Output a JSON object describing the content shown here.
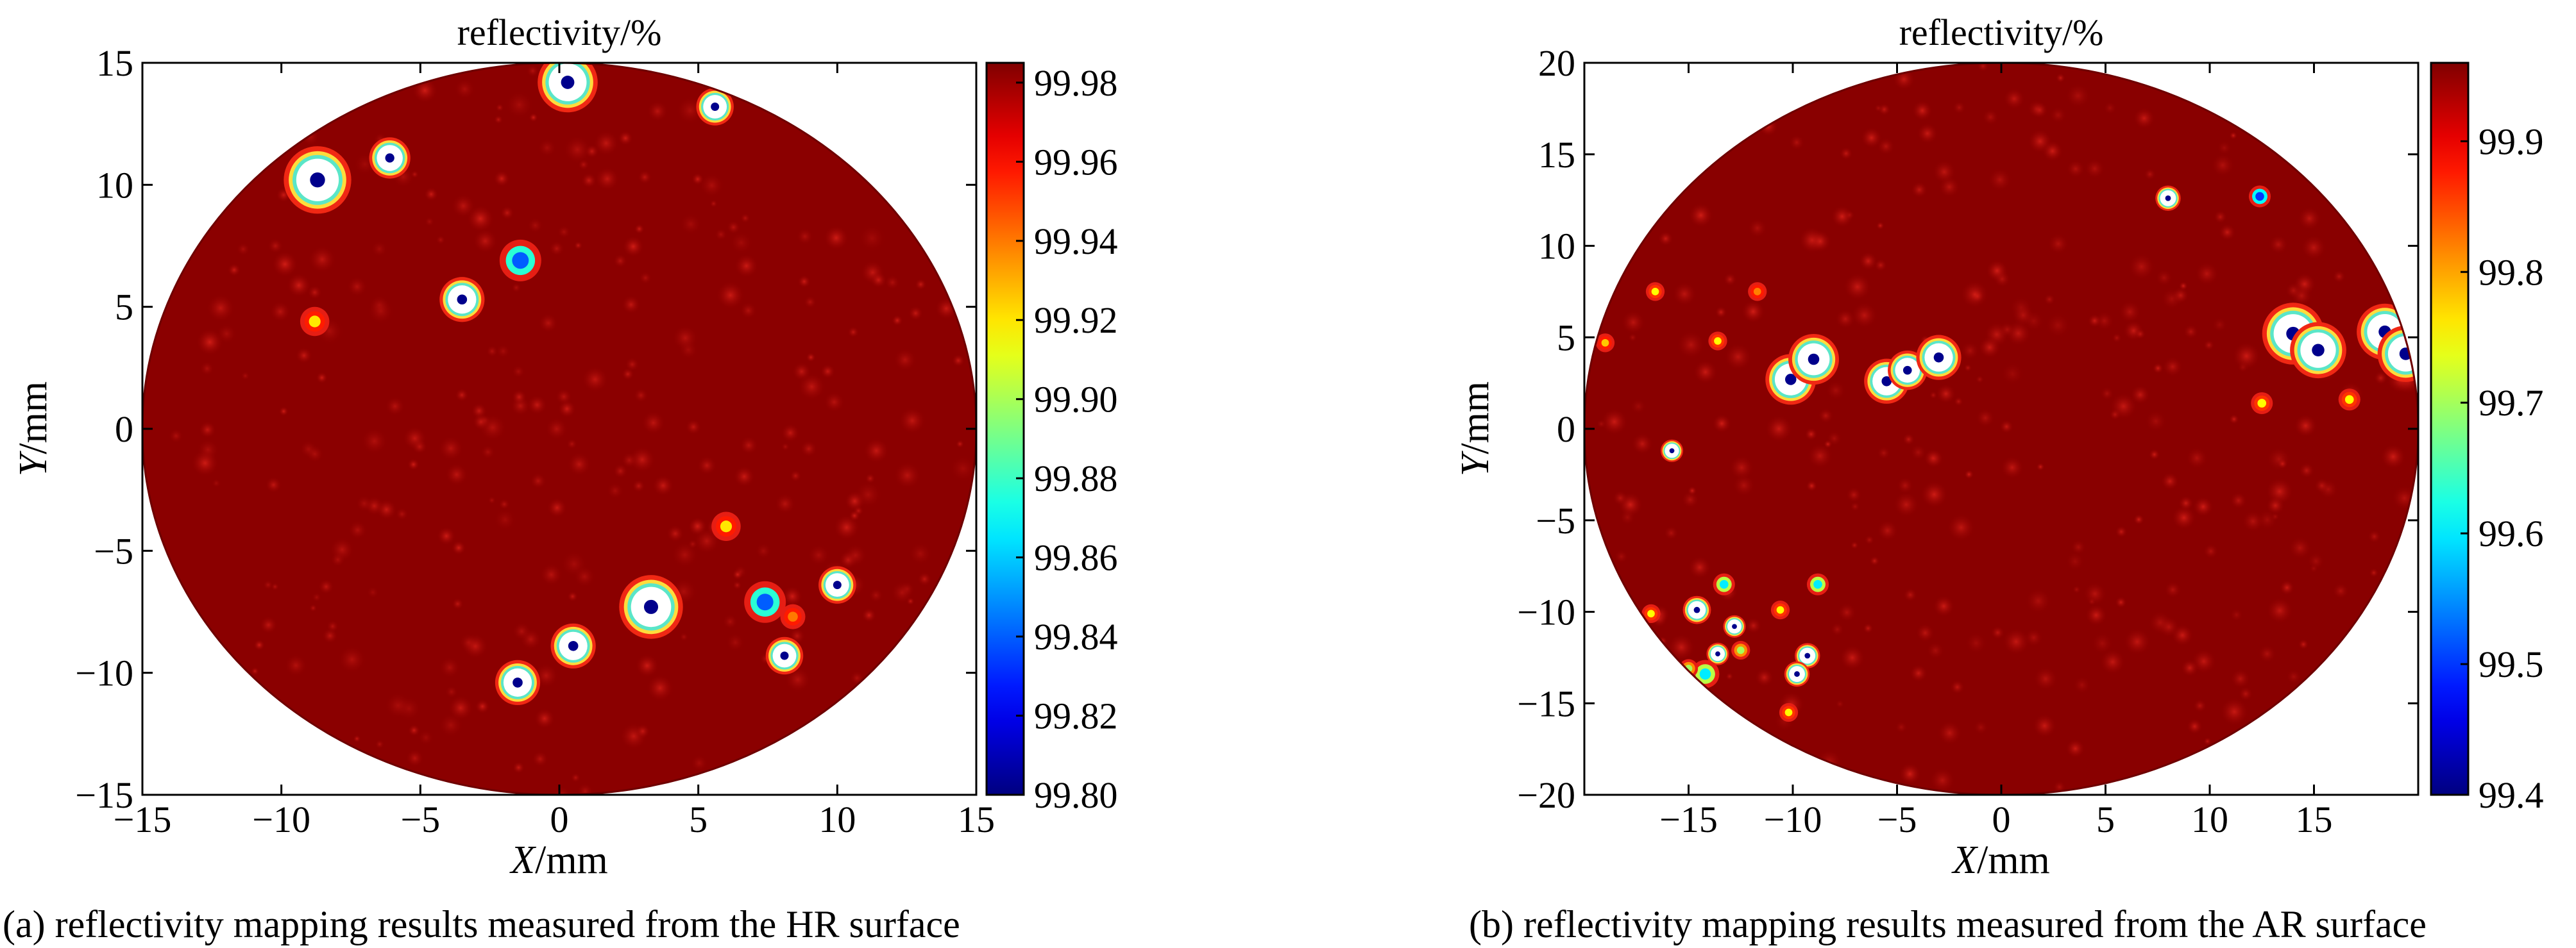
{
  "figure": {
    "captions": [
      "(a) reflectivity mapping results measured from the HR surface",
      "(b) reflectivity mapping results measured from the AR surface"
    ]
  },
  "chart_data": [
    {
      "type": "heatmap",
      "title": "reflectivity/%",
      "xlabel_italic": "X",
      "xlabel_unit": "/mm",
      "ylabel_italic": "Y",
      "ylabel_unit": "/mm",
      "xlim": [
        -15,
        15
      ],
      "ylim": [
        -15,
        15
      ],
      "xticks": [
        -15,
        -10,
        -5,
        0,
        5,
        10,
        15
      ],
      "xtick_labels": [
        "−15",
        "−10",
        "−5",
        "0",
        "5",
        "10",
        "15"
      ],
      "yticks": [
        -15,
        -10,
        -5,
        0,
        5,
        10,
        15
      ],
      "ytick_labels": [
        "−15",
        "−10",
        "−5",
        "0",
        "5",
        "10",
        "15"
      ],
      "aperture_radius": 15,
      "colorbar": {
        "range": [
          99.8,
          99.985
        ],
        "ticks": [
          99.8,
          99.82,
          99.84,
          99.86,
          99.88,
          99.9,
          99.92,
          99.94,
          99.96,
          99.98
        ],
        "tick_labels": [
          "99.80",
          "99.82",
          "99.84",
          "99.86",
          "99.88",
          "99.90",
          "99.92",
          "99.94",
          "99.96",
          "99.98"
        ],
        "colormap": "jet"
      },
      "background_level": 99.983,
      "defects": [
        {
          "x": 0.3,
          "y": 14.2,
          "r": 0.8,
          "level": 99.8
        },
        {
          "x": 5.6,
          "y": 13.2,
          "r": 0.5,
          "level": 99.8
        },
        {
          "x": -8.7,
          "y": 10.2,
          "r": 0.9,
          "level": 99.8
        },
        {
          "x": -6.1,
          "y": 11.1,
          "r": 0.55,
          "level": 99.8
        },
        {
          "x": -1.4,
          "y": 6.9,
          "r": 0.5,
          "level": 99.84
        },
        {
          "x": -3.5,
          "y": 5.3,
          "r": 0.6,
          "level": 99.8
        },
        {
          "x": -8.8,
          "y": 4.4,
          "r": 0.35,
          "level": 99.92
        },
        {
          "x": 6.0,
          "y": -4.0,
          "r": 0.35,
          "level": 99.92
        },
        {
          "x": 3.3,
          "y": -7.3,
          "r": 0.85,
          "level": 99.8
        },
        {
          "x": 7.4,
          "y": -7.1,
          "r": 0.5,
          "level": 99.84
        },
        {
          "x": 10.0,
          "y": -6.4,
          "r": 0.5,
          "level": 99.8
        },
        {
          "x": 8.4,
          "y": -7.7,
          "r": 0.3,
          "level": 99.94
        },
        {
          "x": 8.1,
          "y": -9.3,
          "r": 0.5,
          "level": 99.82
        },
        {
          "x": 0.5,
          "y": -8.9,
          "r": 0.6,
          "level": 99.8
        },
        {
          "x": -1.5,
          "y": -10.4,
          "r": 0.6,
          "level": 99.8
        }
      ]
    },
    {
      "type": "heatmap",
      "title": "reflectivity/%",
      "xlabel_italic": "X",
      "xlabel_unit": "/mm",
      "ylabel_italic": "Y",
      "ylabel_unit": "/mm",
      "xlim": [
        -20,
        20
      ],
      "ylim": [
        -20,
        20
      ],
      "xticks": [
        -15,
        -10,
        -5,
        0,
        5,
        10,
        15
      ],
      "xtick_labels": [
        "−15",
        "−10",
        "−5",
        "0",
        "5",
        "10",
        "15"
      ],
      "yticks": [
        -20,
        -15,
        -10,
        -5,
        0,
        5,
        10,
        15,
        20
      ],
      "ytick_labels": [
        "−20",
        "−15",
        "−10",
        "−5",
        "0",
        "5",
        "10",
        "15",
        "20"
      ],
      "aperture_radius": 20,
      "colorbar": {
        "range": [
          99.4,
          99.96
        ],
        "ticks": [
          99.4,
          99.5,
          99.6,
          99.7,
          99.8,
          99.9
        ],
        "tick_labels": [
          "99.4",
          "99.5",
          "99.6",
          "99.7",
          "99.8",
          "99.9"
        ],
        "colormap": "jet"
      },
      "background_level": 99.955,
      "defects": [
        {
          "x": -10.1,
          "y": 2.7,
          "r": 0.9,
          "level": 99.4
        },
        {
          "x": -9.0,
          "y": 3.8,
          "r": 0.9,
          "level": 99.4
        },
        {
          "x": -5.5,
          "y": 2.6,
          "r": 0.8,
          "level": 99.4
        },
        {
          "x": -4.5,
          "y": 3.2,
          "r": 0.7,
          "level": 99.4
        },
        {
          "x": -3.0,
          "y": 3.9,
          "r": 0.8,
          "level": 99.4
        },
        {
          "x": 14.0,
          "y": 5.2,
          "r": 1.1,
          "level": 99.4
        },
        {
          "x": 15.2,
          "y": 4.3,
          "r": 1.0,
          "level": 99.4
        },
        {
          "x": 18.4,
          "y": 5.3,
          "r": 1.0,
          "level": 99.4
        },
        {
          "x": 19.4,
          "y": 4.1,
          "r": 1.0,
          "level": 99.4
        },
        {
          "x": 8.0,
          "y": 12.6,
          "r": 0.45,
          "level": 99.45
        },
        {
          "x": 12.4,
          "y": 12.7,
          "r": 0.35,
          "level": 99.5
        },
        {
          "x": 12.5,
          "y": 1.4,
          "r": 0.35,
          "level": 99.75
        },
        {
          "x": 16.7,
          "y": 1.6,
          "r": 0.35,
          "level": 99.75
        },
        {
          "x": -15.8,
          "y": -1.2,
          "r": 0.4,
          "level": 99.45
        },
        {
          "x": -13.3,
          "y": -8.5,
          "r": 0.35,
          "level": 99.6
        },
        {
          "x": -8.8,
          "y": -8.5,
          "r": 0.35,
          "level": 99.6
        },
        {
          "x": -14.6,
          "y": -9.9,
          "r": 0.5,
          "level": 99.45
        },
        {
          "x": -12.8,
          "y": -10.8,
          "r": 0.4,
          "level": 99.45
        },
        {
          "x": -13.6,
          "y": -12.3,
          "r": 0.4,
          "level": 99.45
        },
        {
          "x": -12.5,
          "y": -12.1,
          "r": 0.3,
          "level": 99.7
        },
        {
          "x": -9.3,
          "y": -12.4,
          "r": 0.45,
          "level": 99.45
        },
        {
          "x": -9.8,
          "y": -13.4,
          "r": 0.45,
          "level": 99.45
        },
        {
          "x": -14.2,
          "y": -13.4,
          "r": 0.45,
          "level": 99.6
        },
        {
          "x": -16.8,
          "y": -10.1,
          "r": 0.3,
          "level": 99.75
        },
        {
          "x": -10.6,
          "y": -9.9,
          "r": 0.3,
          "level": 99.75
        },
        {
          "x": -10.2,
          "y": -15.5,
          "r": 0.3,
          "level": 99.75
        },
        {
          "x": -16.6,
          "y": 7.5,
          "r": 0.3,
          "level": 99.75
        },
        {
          "x": -13.6,
          "y": 4.8,
          "r": 0.3,
          "level": 99.75
        },
        {
          "x": -19.0,
          "y": 4.7,
          "r": 0.3,
          "level": 99.78
        },
        {
          "x": -11.7,
          "y": 7.5,
          "r": 0.3,
          "level": 99.82
        },
        {
          "x": -15.0,
          "y": -13.1,
          "r": 0.3,
          "level": 99.7
        }
      ]
    }
  ]
}
